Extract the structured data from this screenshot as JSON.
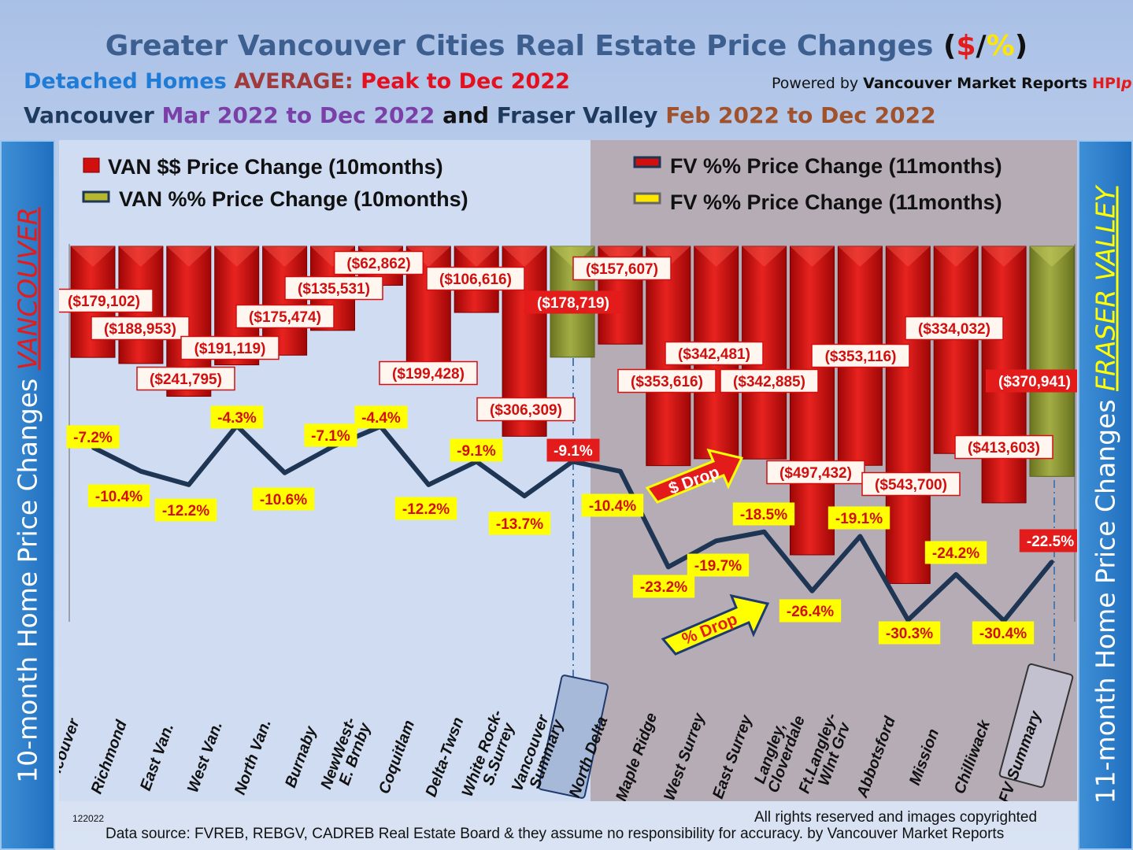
{
  "header": {
    "title": "Greater Vancouver Cities Real Estate Price Changes",
    "title_symbols": {
      "open": "(",
      "dollar": "$",
      "slash": "/",
      "pct": "%",
      "close": ")"
    },
    "subtitle1": {
      "a": "Detached Homes",
      "b": "AVERAGE:",
      "c": "Peak to Dec 2022"
    },
    "powered": {
      "a": "Powered by",
      "b": "Vancouver Market Reports",
      "c": "HPI",
      "d": "p"
    },
    "subtitle2": {
      "a": "Vancouver",
      "b": "Mar 2022 to Dec 2022",
      "c": "and",
      "d": "Fraser Valley",
      "e": "Feb 2022 to Dec 2022"
    }
  },
  "side_labels": {
    "left": {
      "text": "10-month Home Price Changes",
      "city": "VANCOUVER"
    },
    "right": {
      "text": "11-month Home Price  Changes",
      "city": "FRASER VALLEY"
    }
  },
  "legend": {
    "van_dollar": "VAN $$ Price Change (10months)",
    "van_pct": "VAN %% Price Change (10months)",
    "fv_dollar": "FV %% Price Change (11months)",
    "fv_pct": "FV %% Price Change (11months)"
  },
  "annotations": {
    "dollar_drop": "$ Drop",
    "pct_drop": "% Drop"
  },
  "footer": {
    "code": "122022",
    "rights": "All rights reserved and  images copyrighted",
    "source": "Data source: FVREB, REBGV, CADREB Real Estate Board & they assume no responsibility for accuracy. by Vancouver Market Reports"
  },
  "colors": {
    "bar_red": "#d10f0f",
    "bar_summary": "#8e9a3a",
    "line": "#1e3554",
    "label_yellow": "#ffff00",
    "fv_panel": "#b5acb5"
  },
  "chart_data": {
    "type": "bar",
    "categories": [
      "Vancouver",
      "Richmond",
      "East Van.",
      "West Van.",
      "North Van.",
      "Burnaby",
      "NewWest-E. Brnby",
      "Coquitlam",
      "Delta-Twsn",
      "White Rock-S.Surrey",
      "Vancouver Summary",
      "North Delta",
      "Maple Ridge",
      "West Surrey",
      "East Surrey",
      "Langley, Cloverdale",
      "Ft.Langley-Wlnt Grv",
      "Abbotsford",
      "Mission",
      "Chilliwack",
      "FV Summary"
    ],
    "series": [
      {
        "name": "VAN $$ Price Change (10months)",
        "labels": [
          "($179,102)",
          "($188,953)",
          "($241,795)",
          "($191,119)",
          "($175,474)",
          "($135,531)",
          "($62,862)",
          "($199,428)",
          "($106,616)",
          "($306,309)",
          "($178,719)",
          "($157,607)",
          "($353,616)",
          "($342,481)",
          "($342,885)",
          "($497,432)",
          "($353,116)",
          "($543,700)",
          "($334,032)",
          "($413,603)",
          "($370,941)"
        ],
        "values": [
          -179102,
          -188953,
          -241795,
          -191119,
          -175474,
          -135531,
          -62862,
          -199428,
          -106616,
          -306309,
          -178719,
          -157607,
          -353616,
          -342481,
          -342885,
          -497432,
          -353116,
          -543700,
          -334032,
          -413603,
          -370941
        ]
      },
      {
        "name": "VAN %% Price Change (10months)",
        "labels": [
          "-7.2%",
          "-10.4%",
          "-12.2%",
          "-4.3%",
          "-10.6%",
          "-7.1%",
          "-4.4%",
          "-12.2%",
          "-9.1%",
          "-13.7%",
          "-9.1%",
          "-10.4%",
          "-23.2%",
          "-19.7%",
          "-18.5%",
          "-26.4%",
          "-19.1%",
          "-30.3%",
          "-24.2%",
          "-30.4%",
          "-22.5%"
        ],
        "values": [
          -7.2,
          -10.4,
          -12.2,
          -4.3,
          -10.6,
          -7.1,
          -4.4,
          -12.2,
          -9.1,
          -13.7,
          -9.1,
          -10.4,
          -23.2,
          -19.7,
          -18.5,
          -26.4,
          -19.1,
          -30.3,
          -24.2,
          -30.4,
          -22.5
        ]
      }
    ]
  }
}
